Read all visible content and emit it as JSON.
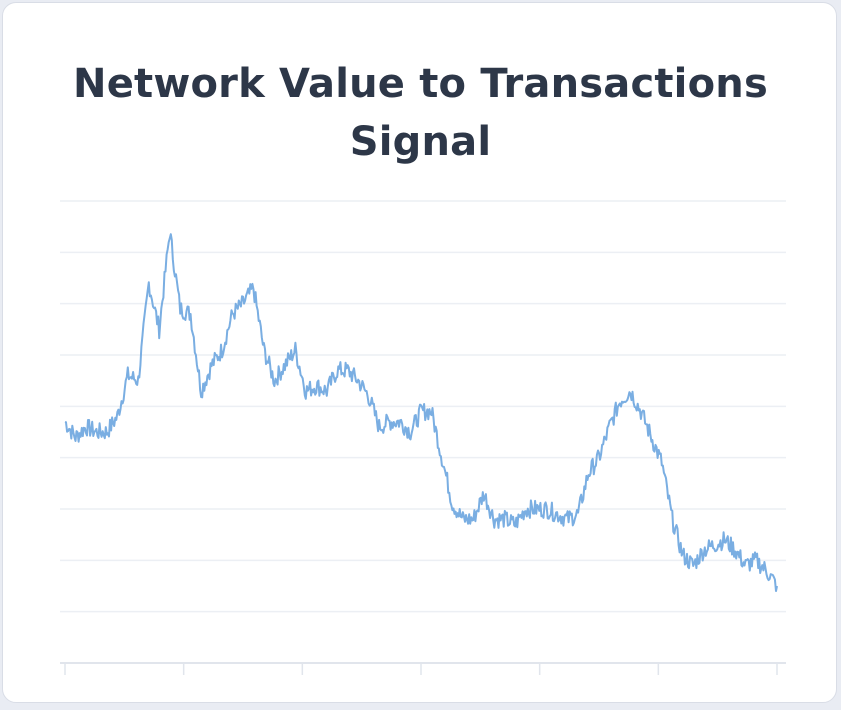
{
  "card": {
    "title": "Network Value to Transactions Signal"
  },
  "chart_data": {
    "type": "line",
    "title": "Network Value to Transactions Signal",
    "xlabel": "",
    "ylabel": "",
    "grid": true,
    "ylim": [
      0,
      9
    ],
    "series": [
      {
        "color": "#7aaee2",
        "values": [
          4.7,
          4.4,
          4.6,
          4.5,
          4.5,
          4.8,
          5.6,
          5.5,
          7.4,
          6.5,
          8.4,
          6.9,
          6.8,
          5.3,
          5.8,
          6.1,
          6.8,
          7.0,
          7.3,
          6.1,
          5.5,
          5.8,
          6.1,
          5.3,
          5.4,
          5.3,
          5.7,
          5.7,
          5.5,
          5.2,
          4.6,
          4.7,
          4.7,
          4.5,
          4.9,
          4.9,
          4.0,
          3.1,
          2.8,
          2.8,
          3.3,
          2.8,
          2.8,
          2.7,
          3.0,
          3.0,
          3.0,
          2.9,
          2.8,
          2.9,
          3.7,
          4.0,
          4.6,
          5.1,
          5.3,
          4.9,
          4.4,
          3.9,
          2.8,
          2.1,
          1.9,
          2.2,
          2.3,
          2.4,
          2.2,
          1.9,
          2.0,
          1.8,
          1.5
        ]
      }
    ],
    "x_ticks": 7,
    "h_gridlines": 9
  }
}
